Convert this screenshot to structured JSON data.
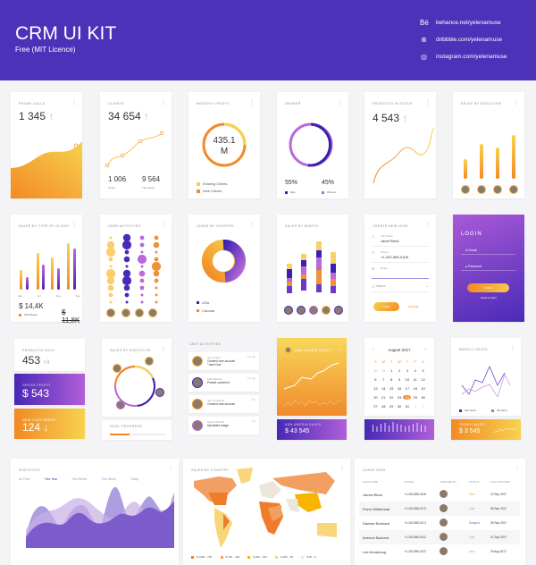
{
  "header": {
    "title": "CRM UI KIT",
    "subtitle": "Free (MIT Licence)",
    "links": [
      {
        "icon": "behance-icon",
        "glyph": "Bē",
        "text": "behance.net/yelenamuse"
      },
      {
        "icon": "dribbble-icon",
        "glyph": "⊛",
        "text": "dribbble.com/yelenamuse"
      },
      {
        "icon": "instagram-icon",
        "glyph": "◎",
        "text": "instagram.com/yelenamuse"
      }
    ]
  },
  "colors": {
    "purple": "#4b32b8",
    "orange": "#f28a25",
    "yellow": "#f7d24e",
    "violet": "#b05fd8"
  },
  "phone_calls": {
    "title": "Phone calls",
    "value": "1 345"
  },
  "clients": {
    "title": "Clients",
    "value": "34 654",
    "today": "1 006",
    "today_label": "Today",
    "week": "9 564",
    "week_label": "This week"
  },
  "monthly_profit": {
    "title": "Monthly profit",
    "value": "435.1",
    "unit": "M",
    "legend": [
      "Existing Clients",
      "New Clients"
    ]
  },
  "gender": {
    "title": "Gender",
    "men": "55%",
    "women": "45%",
    "men_label": "Men",
    "women_label": "Women",
    "men_share": 55
  },
  "products_stock": {
    "title": "Products in stock",
    "value": "4 543"
  },
  "sales_exec": {
    "title": "Sales by executive"
  },
  "sales_type": {
    "title": "Sales by type of client",
    "months": [
      "Jan",
      "Jul",
      "Aug",
      "Sep"
    ],
    "value1": "$ 14,4K",
    "label1": "Old Clients",
    "value2": "$ 11,8K"
  },
  "user_activities": {
    "title": "User activities"
  },
  "leads_country": {
    "title": "Leads by country",
    "legend": [
      "USA",
      "Canada"
    ]
  },
  "sales_month": {
    "title": "Sales by month"
  },
  "new_lead": {
    "title": "Create new lead",
    "name_label": "Full Name",
    "name": "Janet Reed",
    "phone_label": "Phone",
    "phone": "+1-202-555-0108",
    "email_label": "Email",
    "status": "Status",
    "save": "Save",
    "cancel": "Cancel"
  },
  "login": {
    "title": "LOGIN",
    "email": "Email",
    "password": "Password",
    "button": "LOGIN",
    "help": "Need a help?"
  },
  "products_sold": {
    "title": "Products sold",
    "value": "453",
    "delta": "+3"
  },
  "gross_profit": {
    "title": "Gross profit",
    "value": "$ 543"
  },
  "new_customers": {
    "title": "New customers",
    "value": "124"
  },
  "sales_exec2": {
    "title": "Sales by executive",
    "goal": "Goal progress",
    "goal_pct": 35
  },
  "activities": {
    "title": "Last activities",
    "items": [
      {
        "name": "Ann Andria",
        "text": "Created new account \"Jane Doe\"",
        "time": "1 hr ago"
      },
      {
        "name": "Matt Machia",
        "text": "Posted comment",
        "time": "2 hr ago"
      },
      {
        "name": "Joe Lombardo",
        "text": "Created new account",
        "time": "3 hr"
      },
      {
        "name": "Monica Bonak",
        "text": "Uploaded image",
        "time": "4 hr"
      }
    ]
  },
  "ann": {
    "title": "Ann Andria sales",
    "footer": "Ann Andria sales",
    "value": "$ 43 545"
  },
  "calendar": {
    "month": "August 2017",
    "weekdays": [
      "S",
      "M",
      "T",
      "W",
      "T",
      "F",
      "S"
    ],
    "days": [
      "30",
      "31",
      "1",
      "2",
      "3",
      "4",
      "5",
      "6",
      "7",
      "8",
      "9",
      "10",
      "11",
      "12",
      "13",
      "14",
      "15",
      "16",
      "17",
      "18",
      "19",
      "20",
      "21",
      "22",
      "23",
      "24",
      "25",
      "26",
      "27",
      "28",
      "29",
      "30",
      "31",
      "1",
      "2"
    ],
    "selected": "24"
  },
  "weekly": {
    "title": "Weekly sales",
    "legend": [
      "New clients",
      "Old clients"
    ],
    "today_label": "Today sales",
    "today_value": "$ 3 545"
  },
  "statistics": {
    "title": "Statistics",
    "tabs": [
      "All Time",
      "This Year",
      "This Month",
      "This Week",
      "Today"
    ],
    "active": "This Year"
  },
  "country": {
    "title": "Sales by country",
    "legend": [
      {
        "label": "$ 100K - 70K",
        "color": "#ef7c2b"
      },
      {
        "label": "$ 70K - 40K",
        "color": "#f2a062"
      },
      {
        "label": "$ 40K - 20K",
        "color": "#f7b500"
      },
      {
        "label": "$ 20K - 5K",
        "color": "#fad67a"
      },
      {
        "label": "$ 5K - 0",
        "color": "#ece6dd"
      }
    ]
  },
  "leads": {
    "title": "Leads grid",
    "columns": [
      "Lead name",
      "Phone",
      "Created by",
      "Status",
      "Last updated"
    ],
    "rows": [
      [
        "James Bloor",
        "+1-202-555-0109",
        "Won",
        "10 Sep 2017"
      ],
      [
        "Fionn Whitehead",
        "+1-202-555-0172",
        "Lost",
        "05 Sep 2017"
      ],
      [
        "Damien Bonnard",
        "+1-202-555-0171",
        "Delayed",
        "05 Sep 2017"
      ],
      [
        "Aneurin Barnard",
        "+1-202-555-0112",
        "Lost",
        "01 Sep 2017"
      ],
      [
        "Lee Armstrong",
        "+1-202-555-0137",
        "Won",
        "29 Aug 2017"
      ]
    ]
  }
}
